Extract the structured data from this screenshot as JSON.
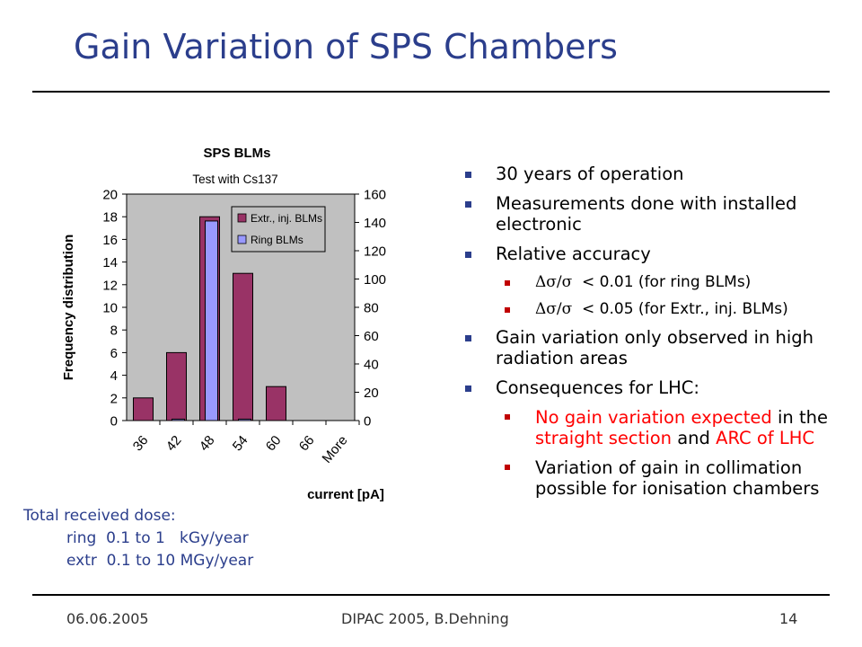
{
  "slide": {
    "title": "Gain Variation of SPS Chambers"
  },
  "bullets": {
    "b1": "30 years of operation",
    "b2": "Measurements done with installed electronic",
    "b3": "Relative accuracy",
    "s1_sym": "Δσ/σ",
    "s1_text": "< 0.01 (for ring BLMs)",
    "s2_sym": "Δσ/σ",
    "s2_text": "< 0.05 (for Extr., inj. BLMs)",
    "b4": "Gain variation only observed in high radiation areas",
    "b5": "Consequences for LHC:",
    "s3_a": "No gain variation expected",
    "s3_b": " in the ",
    "s3_c": "straight section",
    "s3_d": " and ",
    "s3_e": "ARC of LHC",
    "s4": "Variation of gain in collimation possible for ionisation chambers"
  },
  "dose": {
    "title": "Total received dose:",
    "ring": "ring  0.1 to 1   kGy/year",
    "extr": "extr  0.1 to 10 MGy/year"
  },
  "footer": {
    "date": "06.06.2005",
    "event": "DIPAC 2005, B.Dehning",
    "page": "14"
  },
  "colors": {
    "title_blue": "#2b3e8c",
    "extr_bar": "#993366",
    "ring_bar": "#9999ff",
    "plot_bg": "#c0c0c0",
    "highlight_red": "#ff0000"
  },
  "chart_data": {
    "type": "bar",
    "title": "SPS BLMs",
    "subtitle": "Test with Cs137",
    "xlabel": "current [pA]",
    "ylabel": "Frequency distribution",
    "categories": [
      "36",
      "42",
      "48",
      "54",
      "60",
      "66",
      "More"
    ],
    "ylim_left": [
      0,
      20
    ],
    "yticks_left": [
      0,
      2,
      4,
      6,
      8,
      10,
      12,
      14,
      16,
      18,
      20
    ],
    "ylim_right": [
      0,
      160
    ],
    "yticks_right": [
      0,
      20,
      40,
      60,
      80,
      100,
      120,
      140,
      160
    ],
    "legend_position": "top-right",
    "series": [
      {
        "name": "Extr., inj. BLMs",
        "axis": "left",
        "color": "#993366",
        "values": [
          2,
          6,
          18,
          13,
          3,
          0,
          0
        ]
      },
      {
        "name": "Ring BLMs",
        "axis": "right",
        "color": "#9999ff",
        "values": [
          0,
          1,
          141,
          1,
          0,
          0,
          0
        ]
      }
    ]
  }
}
